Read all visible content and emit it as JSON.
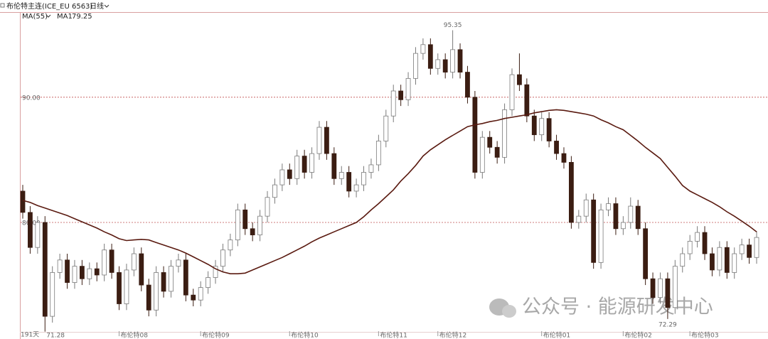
{
  "chart_data": {
    "type": "candlestick",
    "title": "布伦特主连(ICE_EU 6563)",
    "period": "日线",
    "indicator": "MA(55)",
    "days_label": "191天",
    "watermark": "公众号 · 能源研发中心",
    "up_color": "#ffffff",
    "down_color": "#3b1d12",
    "ylim": [
      71.2,
      96.8
    ],
    "yticks": [
      {
        "value": 80,
        "label": "80.00"
      },
      {
        "value": 90,
        "label": "90.00"
      }
    ],
    "grid": true,
    "categories": [
      null,
      null,
      null,
      null,
      null,
      null,
      null,
      null,
      null,
      null,
      null,
      null,
      null,
      "布伦特08",
      null,
      null,
      null,
      null,
      null,
      null,
      null,
      null,
      null,
      null,
      "布伦特09",
      null,
      null,
      null,
      null,
      null,
      null,
      null,
      null,
      null,
      null,
      null,
      "布伦特10",
      null,
      null,
      null,
      null,
      null,
      null,
      null,
      null,
      null,
      null,
      null,
      "布伦特11",
      null,
      null,
      null,
      null,
      null,
      null,
      null,
      "布伦特12",
      null,
      null,
      null,
      null,
      null,
      null,
      null,
      null,
      null,
      null,
      null,
      null,
      null,
      "布伦特01",
      null,
      null,
      null,
      null,
      null,
      null,
      null,
      null,
      null,
      null,
      "布伦特02",
      null,
      null,
      null,
      null,
      null,
      null,
      null,
      null,
      "布伦特03",
      null,
      null,
      null,
      null,
      null,
      null,
      null,
      null,
      null
    ],
    "open": [
      82.5,
      80.8,
      78.0,
      80.0,
      72.5,
      76.0,
      77.0,
      75.2,
      76.5,
      75.5,
      76.3,
      75.8,
      77.8,
      76.0,
      73.5,
      76.2,
      77.5,
      75.0,
      73.0,
      76.0,
      74.5,
      76.5,
      77.0,
      74.2,
      73.8,
      74.8,
      75.6,
      76.5,
      77.8,
      78.6,
      81.0,
      79.5,
      79.0,
      80.5,
      82.0,
      83.0,
      84.2,
      83.5,
      85.3,
      84.0,
      85.5,
      87.6,
      85.5,
      83.5,
      84.0,
      82.5,
      83.0,
      84.0,
      84.6,
      86.5,
      88.5,
      90.5,
      89.8,
      91.5,
      93.5,
      94.2,
      92.3,
      93.0,
      92.0,
      93.8,
      92.0,
      90.0,
      84.0,
      86.8,
      86.0,
      85.2,
      89.0,
      91.8,
      91.0,
      88.5,
      87.0,
      88.3,
      86.5,
      85.5,
      84.8,
      80.0,
      80.5,
      81.8,
      76.8,
      81.0,
      81.5,
      79.5,
      80.0,
      81.3,
      79.5,
      75.5,
      74.0,
      75.5,
      73.2,
      76.5,
      77.5,
      78.5,
      79.2,
      77.5,
      76.2,
      78.0,
      76.0,
      77.5,
      78.2,
      77.2
    ],
    "high": [
      83.0,
      81.3,
      80.5,
      80.5,
      76.5,
      77.5,
      77.5,
      77.0,
      77.0,
      76.8,
      76.8,
      78.3,
      78.3,
      76.5,
      76.7,
      78.0,
      78.0,
      75.5,
      76.5,
      76.5,
      77.0,
      77.5,
      77.5,
      74.7,
      75.3,
      76.1,
      77.0,
      78.3,
      79.1,
      81.5,
      81.5,
      80.0,
      81.0,
      82.5,
      83.5,
      84.7,
      84.7,
      85.8,
      85.8,
      86.0,
      88.1,
      88.1,
      86.0,
      84.5,
      84.5,
      83.5,
      84.5,
      85.1,
      87.0,
      89.0,
      91.0,
      91.0,
      92.0,
      94.0,
      94.7,
      94.7,
      93.5,
      93.5,
      95.35,
      94.3,
      92.5,
      90.5,
      87.3,
      87.3,
      86.5,
      89.5,
      92.3,
      93.5,
      91.5,
      89.0,
      88.8,
      88.8,
      87.0,
      86.0,
      85.3,
      81.0,
      82.3,
      82.3,
      81.5,
      82.0,
      82.0,
      80.5,
      82.0,
      81.8,
      80.0,
      76.0,
      76.0,
      76.0,
      77.0,
      78.0,
      79.0,
      79.7,
      79.7,
      78.0,
      78.5,
      78.5,
      78.0,
      78.7,
      78.7,
      79.3
    ],
    "low": [
      80.3,
      77.5,
      77.5,
      71.28,
      72.0,
      75.5,
      74.7,
      74.7,
      75.0,
      75.0,
      75.3,
      75.3,
      75.5,
      73.0,
      73.0,
      75.7,
      74.5,
      72.5,
      72.5,
      74.0,
      74.0,
      76.0,
      73.7,
      73.3,
      73.3,
      74.3,
      75.1,
      76.0,
      77.3,
      78.1,
      79.0,
      78.5,
      78.5,
      80.0,
      81.5,
      82.5,
      83.0,
      83.0,
      83.5,
      83.5,
      85.0,
      85.0,
      83.0,
      83.0,
      82.0,
      82.0,
      82.5,
      83.5,
      84.1,
      86.0,
      88.0,
      89.3,
      89.3,
      91.0,
      93.0,
      91.8,
      91.8,
      91.5,
      91.5,
      91.5,
      89.5,
      83.5,
      83.5,
      85.5,
      84.7,
      84.7,
      88.5,
      90.5,
      88.0,
      86.5,
      86.5,
      86.0,
      85.0,
      84.3,
      79.5,
      79.5,
      80.0,
      76.3,
      76.3,
      80.5,
      79.0,
      79.0,
      79.5,
      79.0,
      75.0,
      73.5,
      73.5,
      72.29,
      72.7,
      76.0,
      77.0,
      78.0,
      77.0,
      75.7,
      75.7,
      75.5,
      75.5,
      77.0,
      76.7,
      76.7
    ],
    "close": [
      80.8,
      78.0,
      80.0,
      72.5,
      76.0,
      77.0,
      75.2,
      76.5,
      75.5,
      76.3,
      75.8,
      77.8,
      76.0,
      73.5,
      76.2,
      77.5,
      75.0,
      73.0,
      76.0,
      74.5,
      76.5,
      77.0,
      74.2,
      73.8,
      74.8,
      75.6,
      76.5,
      77.8,
      78.6,
      81.0,
      79.5,
      79.0,
      80.5,
      82.0,
      83.0,
      84.2,
      83.5,
      85.3,
      84.0,
      85.5,
      87.6,
      85.5,
      83.5,
      84.0,
      82.5,
      83.0,
      84.0,
      84.6,
      86.5,
      88.5,
      90.5,
      89.8,
      91.5,
      93.5,
      94.2,
      92.3,
      93.0,
      92.0,
      93.8,
      92.0,
      90.0,
      84.0,
      86.8,
      86.0,
      85.2,
      89.0,
      91.8,
      91.0,
      88.5,
      87.0,
      88.3,
      86.5,
      85.5,
      84.8,
      80.0,
      80.5,
      81.8,
      76.8,
      81.0,
      81.5,
      79.5,
      80.0,
      81.3,
      79.5,
      75.5,
      74.0,
      75.5,
      73.2,
      76.5,
      77.5,
      78.5,
      79.2,
      77.5,
      76.2,
      78.0,
      76.0,
      77.5,
      78.2,
      77.2,
      78.8
    ],
    "ma": {
      "name": "MA1",
      "color": "#5a1a10",
      "values": [
        81.76,
        81.6,
        81.35,
        81.15,
        80.95,
        80.75,
        80.55,
        80.3,
        80.05,
        79.8,
        79.55,
        79.25,
        79.0,
        78.7,
        78.55,
        78.6,
        78.65,
        78.6,
        78.4,
        78.2,
        78.0,
        77.8,
        77.55,
        77.25,
        76.95,
        76.65,
        76.3,
        76.05,
        75.9,
        75.9,
        75.95,
        76.2,
        76.45,
        76.7,
        76.95,
        77.2,
        77.5,
        77.8,
        78.1,
        78.45,
        78.75,
        79.0,
        79.25,
        79.5,
        79.75,
        80.0,
        80.45,
        81.0,
        81.5,
        82.05,
        82.6,
        83.3,
        83.9,
        84.55,
        85.3,
        85.8,
        86.2,
        86.6,
        86.95,
        87.3,
        87.65,
        87.8,
        87.9,
        88.05,
        88.15,
        88.3,
        88.4,
        88.5,
        88.6,
        88.75,
        88.85,
        88.95,
        89.0,
        88.95,
        88.85,
        88.75,
        88.65,
        88.5,
        88.2,
        87.95,
        87.65,
        87.4,
        86.95,
        86.5,
        86.0,
        85.55,
        85.1,
        84.4,
        83.7,
        82.95,
        82.5,
        82.2,
        81.9,
        81.6,
        81.25,
        80.85,
        80.5,
        80.1,
        79.7,
        79.25
      ]
    }
  }
}
